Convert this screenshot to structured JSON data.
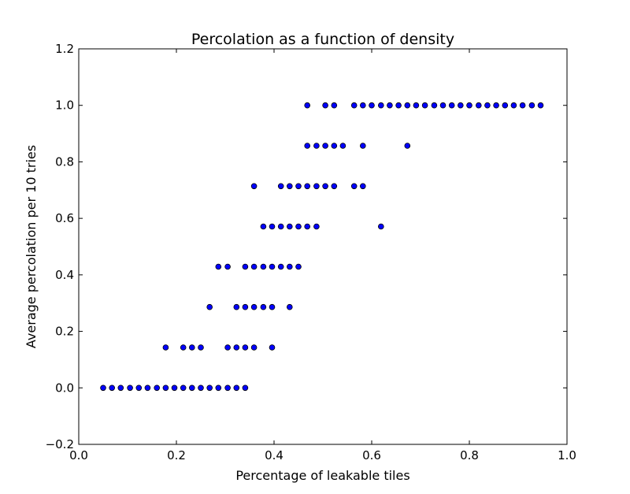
{
  "chart_data": {
    "type": "scatter",
    "title": "Percolation as a function of density",
    "xlabel": "Percentage of leakable tiles",
    "ylabel": "Average percolation per 10 tries",
    "xlim": [
      0.0,
      1.0
    ],
    "ylim": [
      -0.2,
      1.2
    ],
    "xticks": [
      "0.0",
      "0.2",
      "0.4",
      "0.6",
      "0.8",
      "1.0"
    ],
    "yticks": [
      "−0.2",
      "0.0",
      "0.2",
      "0.4",
      "0.6",
      "0.8",
      "1.0",
      "1.2"
    ],
    "grid": false,
    "legend": "none",
    "marker_color": "#0000ff",
    "marker_edge_color": "#000000",
    "points": [
      [
        0.05,
        0.0
      ],
      [
        0.068,
        0.0
      ],
      [
        0.086,
        0.0
      ],
      [
        0.105,
        0.0
      ],
      [
        0.123,
        0.0
      ],
      [
        0.141,
        0.0
      ],
      [
        0.16,
        0.0
      ],
      [
        0.178,
        0.0
      ],
      [
        0.196,
        0.0
      ],
      [
        0.214,
        0.0
      ],
      [
        0.232,
        0.0
      ],
      [
        0.25,
        0.0
      ],
      [
        0.268,
        0.0
      ],
      [
        0.286,
        0.0
      ],
      [
        0.305,
        0.0
      ],
      [
        0.323,
        0.0
      ],
      [
        0.341,
        0.0
      ],
      [
        0.178,
        0.143
      ],
      [
        0.214,
        0.143
      ],
      [
        0.232,
        0.143
      ],
      [
        0.25,
        0.143
      ],
      [
        0.305,
        0.143
      ],
      [
        0.323,
        0.143
      ],
      [
        0.341,
        0.143
      ],
      [
        0.359,
        0.143
      ],
      [
        0.396,
        0.143
      ],
      [
        0.268,
        0.286
      ],
      [
        0.323,
        0.286
      ],
      [
        0.341,
        0.286
      ],
      [
        0.359,
        0.286
      ],
      [
        0.378,
        0.286
      ],
      [
        0.396,
        0.286
      ],
      [
        0.432,
        0.286
      ],
      [
        0.286,
        0.429
      ],
      [
        0.305,
        0.429
      ],
      [
        0.341,
        0.429
      ],
      [
        0.359,
        0.429
      ],
      [
        0.378,
        0.429
      ],
      [
        0.396,
        0.429
      ],
      [
        0.414,
        0.429
      ],
      [
        0.432,
        0.429
      ],
      [
        0.45,
        0.429
      ],
      [
        0.378,
        0.571
      ],
      [
        0.396,
        0.571
      ],
      [
        0.414,
        0.571
      ],
      [
        0.432,
        0.571
      ],
      [
        0.45,
        0.571
      ],
      [
        0.468,
        0.571
      ],
      [
        0.487,
        0.571
      ],
      [
        0.619,
        0.571
      ],
      [
        0.359,
        0.714
      ],
      [
        0.414,
        0.714
      ],
      [
        0.432,
        0.714
      ],
      [
        0.45,
        0.714
      ],
      [
        0.468,
        0.714
      ],
      [
        0.487,
        0.714
      ],
      [
        0.505,
        0.714
      ],
      [
        0.523,
        0.714
      ],
      [
        0.564,
        0.714
      ],
      [
        0.582,
        0.714
      ],
      [
        0.468,
        0.857
      ],
      [
        0.487,
        0.857
      ],
      [
        0.505,
        0.857
      ],
      [
        0.523,
        0.857
      ],
      [
        0.541,
        0.857
      ],
      [
        0.582,
        0.857
      ],
      [
        0.673,
        0.857
      ],
      [
        0.468,
        1.0
      ],
      [
        0.505,
        1.0
      ],
      [
        0.523,
        1.0
      ],
      [
        0.564,
        1.0
      ],
      [
        0.582,
        1.0
      ],
      [
        0.6,
        1.0
      ],
      [
        0.619,
        1.0
      ],
      [
        0.637,
        1.0
      ],
      [
        0.655,
        1.0
      ],
      [
        0.673,
        1.0
      ],
      [
        0.691,
        1.0
      ],
      [
        0.709,
        1.0
      ],
      [
        0.728,
        1.0
      ],
      [
        0.746,
        1.0
      ],
      [
        0.764,
        1.0
      ],
      [
        0.782,
        1.0
      ],
      [
        0.8,
        1.0
      ],
      [
        0.819,
        1.0
      ],
      [
        0.837,
        1.0
      ],
      [
        0.855,
        1.0
      ],
      [
        0.873,
        1.0
      ],
      [
        0.891,
        1.0
      ],
      [
        0.909,
        1.0
      ],
      [
        0.928,
        1.0
      ],
      [
        0.946,
        1.0
      ]
    ]
  }
}
